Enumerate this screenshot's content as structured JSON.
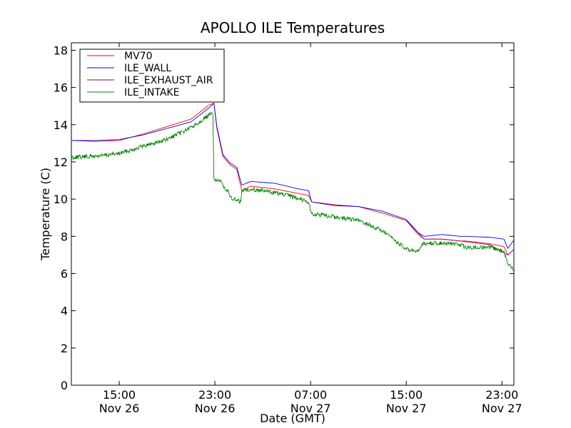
{
  "chart_data": {
    "type": "line",
    "title": "APOLLO ILE Temperatures",
    "xlabel": "Date (GMT)",
    "ylabel": "Temperature (C)",
    "xlim": [
      "2012-11-26 11:00",
      "2012-11-28 00:00"
    ],
    "ylim": [
      0,
      18.4
    ],
    "x_ticks": [
      {
        "time": "2012-11-26 15:00",
        "label_time": "15:00",
        "label_date": "Nov 26"
      },
      {
        "time": "2012-11-26 23:00",
        "label_time": "23:00",
        "label_date": "Nov 26"
      },
      {
        "time": "2012-11-27 07:00",
        "label_time": "07:00",
        "label_date": "Nov 27"
      },
      {
        "time": "2012-11-27 15:00",
        "label_time": "15:00",
        "label_date": "Nov 27"
      },
      {
        "time": "2012-11-27 23:00",
        "label_time": "23:00",
        "label_date": "Nov 27"
      }
    ],
    "y_ticks": [
      0,
      2,
      4,
      6,
      8,
      10,
      12,
      14,
      16,
      18
    ],
    "legend_position": "top-left",
    "grid": false,
    "series": [
      {
        "name": "MV70",
        "color": "#ff0000",
        "x": [
          "2012-11-26 11:00",
          "2012-11-26 13:00",
          "2012-11-26 15:00",
          "2012-11-26 17:00",
          "2012-11-26 19:00",
          "2012-11-26 21:00",
          "2012-11-26 22:30",
          "2012-11-26 22:55",
          "2012-11-26 23:10",
          "2012-11-26 23:40",
          "2012-11-27 00:15",
          "2012-11-27 00:50",
          "2012-11-27 01:15",
          "2012-11-27 02:00",
          "2012-11-27 04:00",
          "2012-11-27 06:00",
          "2012-11-27 06:50",
          "2012-11-27 07:05",
          "2012-11-27 09:00",
          "2012-11-27 11:00",
          "2012-11-27 13:00",
          "2012-11-27 15:00",
          "2012-11-27 16:00",
          "2012-11-27 16:30",
          "2012-11-27 18:00",
          "2012-11-27 19:30",
          "2012-11-27 20:00",
          "2012-11-27 22:00",
          "2012-11-27 23:10",
          "2012-11-27 23:30",
          "2012-11-28 00:00"
        ],
        "y": [
          13.15,
          13.1,
          13.15,
          13.5,
          13.9,
          14.3,
          15.05,
          15.15,
          13.8,
          12.3,
          11.85,
          11.6,
          10.45,
          10.7,
          10.55,
          10.3,
          10.2,
          9.85,
          9.7,
          9.6,
          9.25,
          8.85,
          8.1,
          7.85,
          7.85,
          7.75,
          7.75,
          7.6,
          7.45,
          7.0,
          7.3
        ]
      },
      {
        "name": "ILE_WALL",
        "color": "#0000ff",
        "x": [
          "2012-11-26 11:00",
          "2012-11-26 13:00",
          "2012-11-26 15:00",
          "2012-11-26 17:00",
          "2012-11-26 19:00",
          "2012-11-26 21:00",
          "2012-11-26 22:30",
          "2012-11-26 22:55",
          "2012-11-26 23:10",
          "2012-11-26 23:40",
          "2012-11-27 00:15",
          "2012-11-27 00:50",
          "2012-11-27 01:15",
          "2012-11-27 02:00",
          "2012-11-27 04:00",
          "2012-11-27 06:00",
          "2012-11-27 06:50",
          "2012-11-27 07:05",
          "2012-11-27 09:00",
          "2012-11-27 11:00",
          "2012-11-27 13:00",
          "2012-11-27 15:00",
          "2012-11-27 16:00",
          "2012-11-27 16:30",
          "2012-11-27 18:00",
          "2012-11-27 19:30",
          "2012-11-27 20:00",
          "2012-11-27 22:00",
          "2012-11-27 23:10",
          "2012-11-27 23:30",
          "2012-11-28 00:00"
        ],
        "y": [
          13.15,
          13.15,
          13.2,
          13.45,
          13.8,
          14.15,
          14.9,
          15.15,
          13.9,
          12.4,
          11.95,
          11.7,
          10.75,
          10.95,
          10.85,
          10.55,
          10.45,
          9.85,
          9.65,
          9.6,
          9.35,
          8.9,
          8.2,
          8.0,
          8.1,
          8.0,
          8.0,
          7.95,
          7.85,
          7.35,
          7.8
        ]
      },
      {
        "name": "ILE_EXHAUST_AIR",
        "color": "#800080",
        "x": [
          "2012-11-27 15:00",
          "2012-11-27 16:30",
          "2012-11-27 18:00",
          "2012-11-27 19:30",
          "2012-11-27 22:00",
          "2012-11-27 23:30",
          "2012-11-28 00:00"
        ],
        "y": [
          8.85,
          7.85,
          7.85,
          7.75,
          7.55,
          7.0,
          7.3
        ]
      },
      {
        "name": "ILE_INTAKE",
        "color": "#008000",
        "x": [
          "2012-11-26 11:00",
          "2012-11-26 13:00",
          "2012-11-26 15:00",
          "2012-11-26 17:00",
          "2012-11-26 19:00",
          "2012-11-26 21:00",
          "2012-11-26 22:30",
          "2012-11-26 22:50",
          "2012-11-26 22:55",
          "2012-11-26 23:05",
          "2012-11-26 23:30",
          "2012-11-27 00:10",
          "2012-11-27 00:20",
          "2012-11-27 01:10",
          "2012-11-27 01:15",
          "2012-11-27 02:00",
          "2012-11-27 04:00",
          "2012-11-27 06:00",
          "2012-11-27 06:50",
          "2012-11-27 07:05",
          "2012-11-27 09:00",
          "2012-11-27 11:00",
          "2012-11-27 13:00",
          "2012-11-27 15:00",
          "2012-11-27 16:00",
          "2012-11-27 16:20",
          "2012-11-27 18:00",
          "2012-11-27 19:30",
          "2012-11-27 20:00",
          "2012-11-27 22:00",
          "2012-11-27 23:10",
          "2012-11-27 23:30",
          "2012-11-28 00:00"
        ],
        "y": [
          12.25,
          12.3,
          12.45,
          12.85,
          13.2,
          13.85,
          14.5,
          14.6,
          11.1,
          11.05,
          10.9,
          10.35,
          10.05,
          9.85,
          10.45,
          10.55,
          10.35,
          10.05,
          9.85,
          9.2,
          9.05,
          8.85,
          8.3,
          7.3,
          7.15,
          7.6,
          7.65,
          7.55,
          7.4,
          7.4,
          7.2,
          6.5,
          6.2
        ]
      }
    ]
  }
}
